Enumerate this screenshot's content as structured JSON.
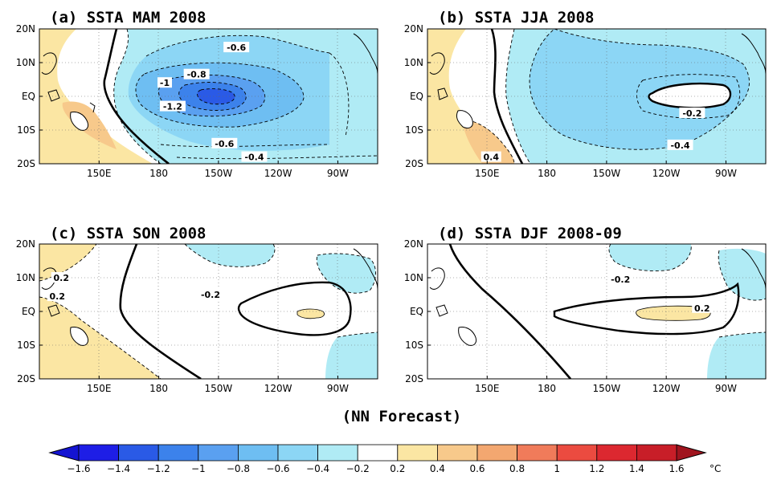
{
  "figure_caption": "(NN Forecast)",
  "map": {
    "lat_ticks": [
      "20N",
      "10N",
      "EQ",
      "10S",
      "20S"
    ],
    "lon_ticks": [
      "150E",
      "180",
      "150W",
      "120W",
      "90W"
    ],
    "lat_range": [
      -20,
      20
    ],
    "lon_range": [
      120,
      290
    ],
    "grid": "dotted",
    "panels": [
      {
        "id": "a",
        "title": "(a) SSTA MAM 2008",
        "contour_labels": [
          {
            "text": "-0.6",
            "lon": 219,
            "lat": 14.5
          },
          {
            "text": "-0.8",
            "lon": 199,
            "lat": 6.5
          },
          {
            "text": "-1",
            "lon": 183,
            "lat": 4
          },
          {
            "text": "-1.2",
            "lon": 187,
            "lat": -3
          },
          {
            "text": "-0.6",
            "lon": 213,
            "lat": -14
          },
          {
            "text": "-0.4",
            "lon": 228,
            "lat": -18
          }
        ]
      },
      {
        "id": "b",
        "title": "(b) SSTA JJA 2008",
        "contour_labels": [
          {
            "text": "-0.2",
            "lon": 253,
            "lat": -5
          },
          {
            "text": "-0.4",
            "lon": 247,
            "lat": -14.5
          },
          {
            "text": "0.4",
            "lon": 152,
            "lat": -18
          }
        ]
      },
      {
        "id": "c",
        "title": "(c) SSTA SON 2008",
        "contour_labels": [
          {
            "text": "0.2",
            "lon": 131,
            "lat": 10
          },
          {
            "text": "0.2",
            "lon": 129,
            "lat": 4.5
          },
          {
            "text": "-0.2",
            "lon": 206,
            "lat": 5
          }
        ]
      },
      {
        "id": "d",
        "title": "(d) SSTA DJF 2008-09",
        "contour_labels": [
          {
            "text": "-0.2",
            "lon": 217,
            "lat": 9.5
          },
          {
            "text": "0.2",
            "lon": 258,
            "lat": 1
          }
        ]
      }
    ]
  },
  "colorbar": {
    "unit": "°C",
    "labels": [
      "-1.6",
      "-1.4",
      "-1.2",
      "-1",
      "-0.8",
      "-0.6",
      "-0.4",
      "-0.2",
      "0.2",
      "0.4",
      "0.6",
      "0.8",
      "1",
      "1.2",
      "1.4",
      "1.6"
    ],
    "colors": [
      "#1e1ee6",
      "#2a5ae6",
      "#3c82eb",
      "#5aa0f0",
      "#6ebef2",
      "#8cd6f5",
      "#b0ebf5",
      "#ffffff",
      "#fbe6a3",
      "#f7c98b",
      "#f3a770",
      "#f07b5a",
      "#eb4b40",
      "#dc2830",
      "#c81e28"
    ],
    "low_arrow_color": "#1414d2",
    "high_arrow_color": "#a0141e"
  }
}
